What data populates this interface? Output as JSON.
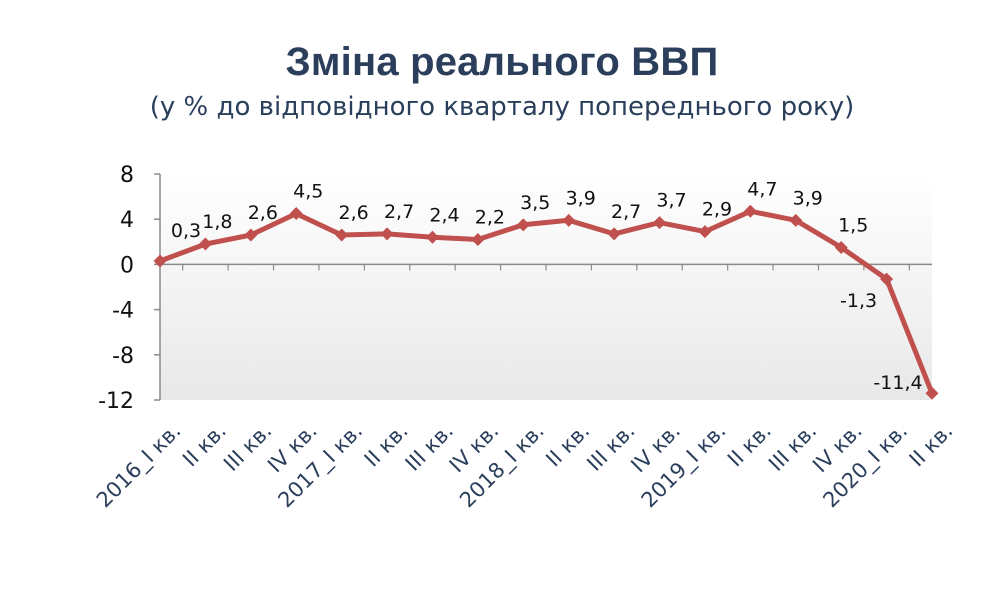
{
  "chart_data": {
    "type": "line",
    "title": "Зміна реального ВВП",
    "subtitle": "(у % до відповідного кварталу попереднього року)",
    "categories": [
      "2016_I кв.",
      "II кв.",
      "III кв.",
      "IV кв.",
      "2017_I кв.",
      "II кв.",
      "III кв.",
      "IV кв.",
      "2018_I кв.",
      "II кв.",
      "III кв.",
      "IV кв.",
      "2019_I кв.",
      "II кв.",
      "III кв.",
      "IV кв.",
      "2020_I кв.",
      "II кв."
    ],
    "values": [
      0.3,
      1.8,
      2.6,
      4.5,
      2.6,
      2.7,
      2.4,
      2.2,
      3.5,
      3.9,
      2.7,
      3.7,
      2.9,
      4.7,
      3.9,
      1.5,
      -1.3,
      -11.4
    ],
    "data_labels": [
      "0,3",
      "1,8",
      "2,6",
      "4,5",
      "2,6",
      "2,7",
      "2,4",
      "2,2",
      "3,5",
      "3,9",
      "2,7",
      "3,7",
      "2,9",
      "4,7",
      "3,9",
      "1,5",
      "-1,3",
      "-11,4"
    ],
    "y_ticks": [
      8,
      4,
      0,
      -4,
      -8,
      -12
    ],
    "y_tick_labels": [
      "8",
      "4",
      "0",
      "-4",
      "-8",
      "-12"
    ],
    "ylim": [
      -12,
      8
    ],
    "line_color": "#c0504d",
    "grid": false,
    "legend": false
  }
}
